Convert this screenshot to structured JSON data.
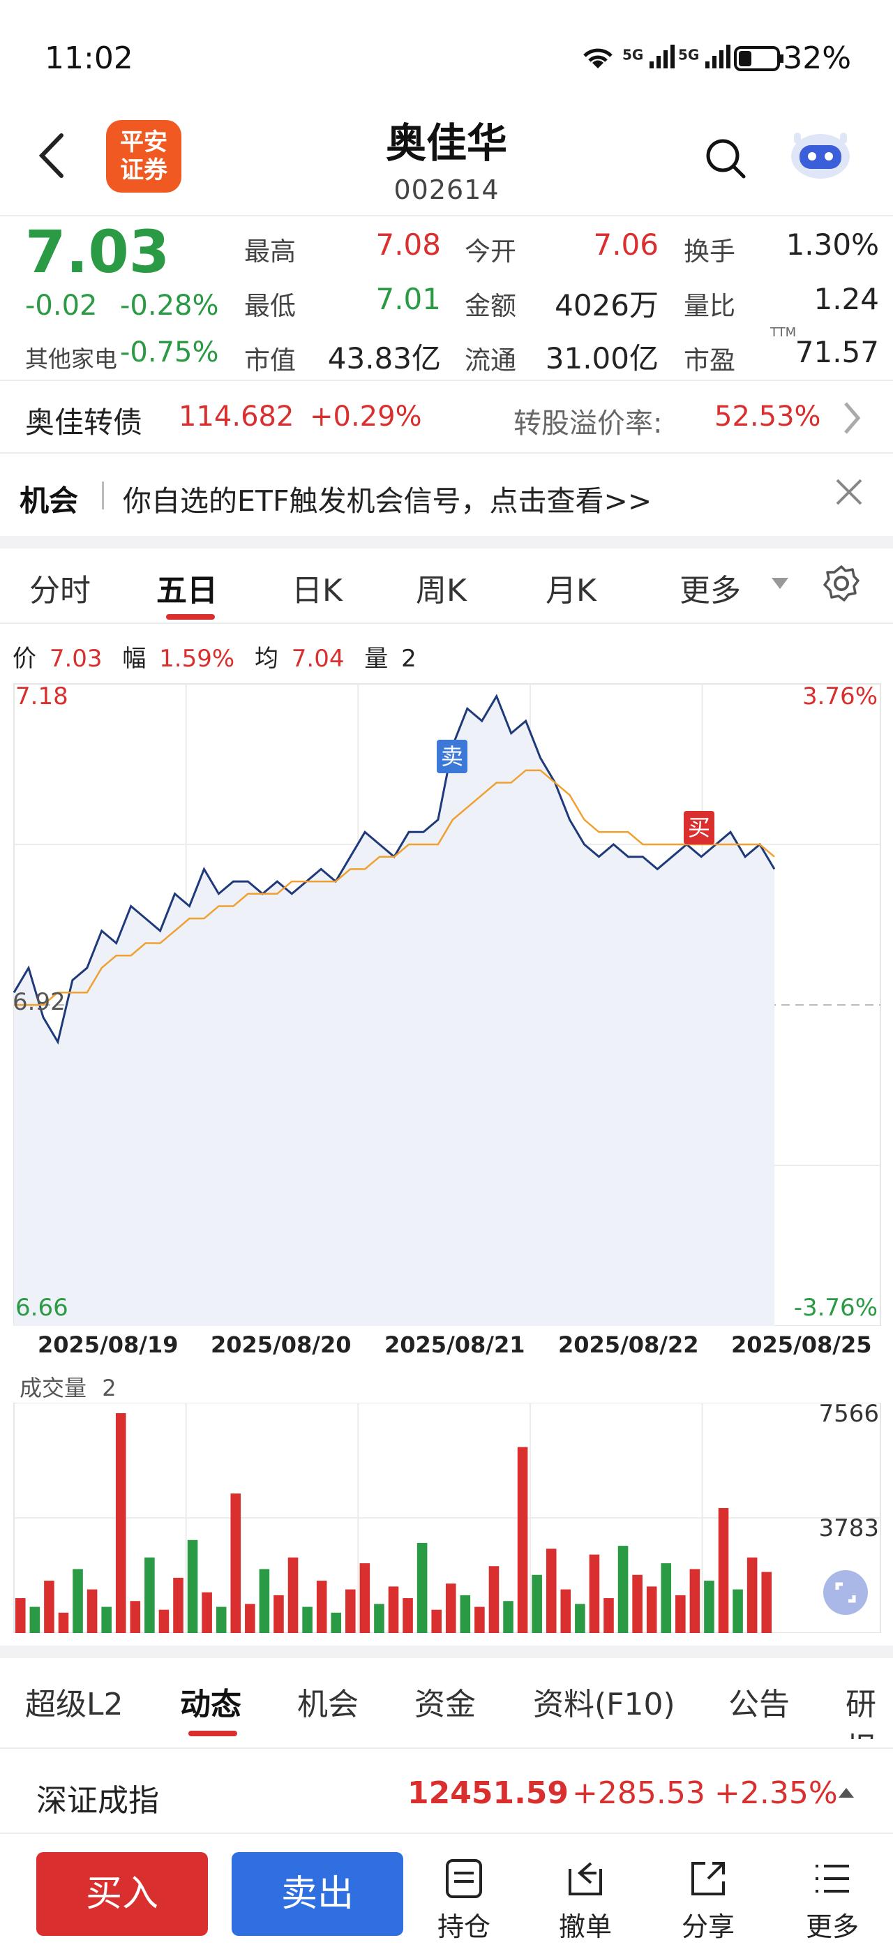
{
  "status_bar": {
    "time": "11:02",
    "battery": "32%",
    "signal_labels": [
      "5G",
      "5G"
    ]
  },
  "header": {
    "title": "奥佳华",
    "code": "002614",
    "logo_text_line1": "平安",
    "logo_text_line2": "证券"
  },
  "quote": {
    "price": "7.03",
    "change": "-0.02",
    "change_pct": "-0.28%",
    "sector_label": "其他家电",
    "sector_pct": "-0.75%",
    "fields": [
      {
        "label": "最高",
        "value": "7.08",
        "color": "red"
      },
      {
        "label": "今开",
        "value": "7.06",
        "color": "red"
      },
      {
        "label": "换手",
        "value": "1.30%",
        "color": "black"
      },
      {
        "label": "最低",
        "value": "7.01",
        "color": "green"
      },
      {
        "label": "金额",
        "value": "4026万",
        "color": "black"
      },
      {
        "label": "量比",
        "value": "1.24",
        "color": "black"
      },
      {
        "label": "市值",
        "value": "43.83亿",
        "color": "black"
      },
      {
        "label": "流通",
        "value": "31.00亿",
        "color": "black"
      },
      {
        "label": "市盈",
        "value": "71.57",
        "color": "black",
        "superscript": "TTM"
      }
    ]
  },
  "bond": {
    "name": "奥佳转债",
    "price": "114.682",
    "change": "+0.29%",
    "premium_label": "转股溢价率:",
    "premium_value": "52.53%"
  },
  "opportunity": {
    "label": "机会",
    "text": "你自选的ETF触发机会信号，点击查看>>"
  },
  "chart_tabs": {
    "items": [
      "分时",
      "五日",
      "日K",
      "周K",
      "月K",
      "更多"
    ],
    "active": "五日"
  },
  "chart_info": {
    "price_label": "价",
    "price": "7.03",
    "amp_label": "幅",
    "amp": "1.59%",
    "avg_label": "均",
    "avg": "7.04",
    "vol_label": "量",
    "vol": "2"
  },
  "chart_data": {
    "type": "line",
    "x_labels": [
      "2025/08/19",
      "2025/08/20",
      "2025/08/21",
      "2025/08/22",
      "2025/08/25"
    ],
    "y_left_max": "7.18",
    "y_left_ref": "6.92",
    "y_left_min": "6.66",
    "y_right_max": "3.76%",
    "y_right_min": "-3.76%",
    "ylim": [
      6.66,
      7.18
    ],
    "prev_close": 6.92,
    "series": [
      {
        "color": "#1f3a7a",
        "values": [
          6.93,
          6.95,
          6.91,
          6.89,
          6.94,
          6.95,
          6.98,
          6.97,
          7.0,
          6.99,
          6.98,
          7.01,
          7.0,
          7.03,
          7.01,
          7.02,
          7.02,
          7.01,
          7.02,
          7.01,
          7.02,
          7.03,
          7.02,
          7.04,
          7.06,
          7.05,
          7.04,
          7.06,
          7.06,
          7.07,
          7.13,
          7.16,
          7.15,
          7.17,
          7.14,
          7.15,
          7.12,
          7.1,
          7.07,
          7.05,
          7.04,
          7.05,
          7.04,
          7.04,
          7.03,
          7.04,
          7.05,
          7.04,
          7.05,
          7.06,
          7.04,
          7.05,
          7.03
        ]
      },
      {
        "color": "#f0a030",
        "values": [
          6.92,
          6.92,
          6.92,
          6.93,
          6.93,
          6.93,
          6.95,
          6.96,
          6.96,
          6.97,
          6.97,
          6.98,
          6.99,
          6.99,
          7.0,
          7.0,
          7.01,
          7.01,
          7.01,
          7.02,
          7.02,
          7.02,
          7.02,
          7.03,
          7.03,
          7.04,
          7.04,
          7.05,
          7.05,
          7.05,
          7.07,
          7.08,
          7.09,
          7.1,
          7.1,
          7.11,
          7.11,
          7.1,
          7.09,
          7.07,
          7.06,
          7.06,
          7.06,
          7.05,
          7.05,
          7.05,
          7.05,
          7.05,
          7.05,
          7.05,
          7.05,
          7.05,
          7.04
        ]
      }
    ],
    "markers": [
      {
        "label": "卖",
        "color": "#3b78d8"
      },
      {
        "label": "买",
        "color": "#d9302f"
      }
    ]
  },
  "volume": {
    "label": "成交量",
    "value": "2",
    "max_label": "7566",
    "mid_label": "3783"
  },
  "volume_data": {
    "values": [
      1200,
      900,
      1800,
      700,
      2200,
      1500,
      900,
      7566,
      1100,
      2600,
      800,
      1900,
      3200,
      1400,
      900,
      4800,
      1000,
      2200,
      1300,
      2600,
      900,
      1800,
      700,
      1500,
      2400,
      1000,
      1600,
      1200,
      3100,
      800,
      1700,
      1300,
      900,
      2300,
      1100,
      6400,
      2000,
      2900,
      1500,
      1000,
      2700,
      1200,
      3000,
      2000,
      1600,
      2400,
      1300,
      2200,
      1800,
      4300,
      1500,
      2600,
      2100
    ],
    "colors": [
      "r",
      "g",
      "r",
      "r",
      "g",
      "r",
      "g",
      "r",
      "r",
      "g",
      "r",
      "r",
      "g",
      "r",
      "g",
      "r",
      "r",
      "g",
      "r",
      "r",
      "g",
      "r",
      "g",
      "r",
      "r",
      "g",
      "r",
      "r",
      "g",
      "r",
      "r",
      "g",
      "r",
      "r",
      "g",
      "r",
      "g",
      "r",
      "r",
      "g",
      "r",
      "r",
      "g",
      "r",
      "r",
      "g",
      "r",
      "r",
      "g",
      "r",
      "g",
      "r",
      "r"
    ]
  },
  "bottom_tabs": {
    "items": [
      "超级L2",
      "动态",
      "机会",
      "资金",
      "资料(F10)",
      "公告",
      "研报"
    ],
    "active": "动态"
  },
  "index_bar": {
    "name": "深证成指",
    "value": "12451.59",
    "change": "+285.53",
    "change_pct": "+2.35%"
  },
  "actions": {
    "buy": "买入",
    "sell": "卖出",
    "holdings": "持仓",
    "cancel": "撤单",
    "share": "分享",
    "more": "更多"
  },
  "colors": {
    "up": "#d9302f",
    "down": "#2a9a45",
    "buy_button": "#d9302f",
    "sell_button": "#2f6fe0",
    "logo": "#f05a22"
  }
}
